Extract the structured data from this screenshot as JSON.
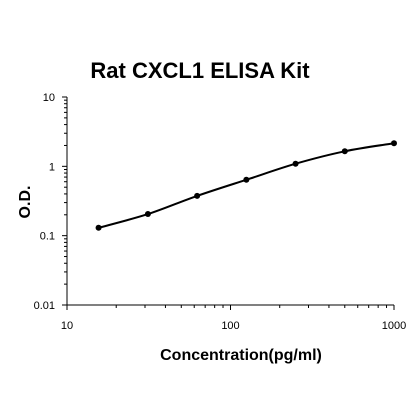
{
  "chart_data": {
    "type": "line",
    "title": "Rat CXCL1 ELISA Kit",
    "xlabel": "Concentration(pg/ml)",
    "ylabel": "O.D.",
    "x_scale": "log",
    "y_scale": "log",
    "xlim": [
      10,
      1000
    ],
    "ylim": [
      0.01,
      10
    ],
    "x_ticks": [
      "10",
      "100",
      "1000"
    ],
    "y_ticks": [
      "10",
      "1",
      "0.1",
      "0.01"
    ],
    "grid": false,
    "legend": "none",
    "series": [
      {
        "x": [
          15.6,
          31.25,
          62.5,
          125,
          250,
          500,
          1000
        ],
        "y": [
          0.13,
          0.205,
          0.375,
          0.64,
          1.09,
          1.65,
          2.15
        ]
      }
    ],
    "colors": {
      "line": "#000000",
      "marker": "#000000",
      "axis": "#000000"
    }
  }
}
